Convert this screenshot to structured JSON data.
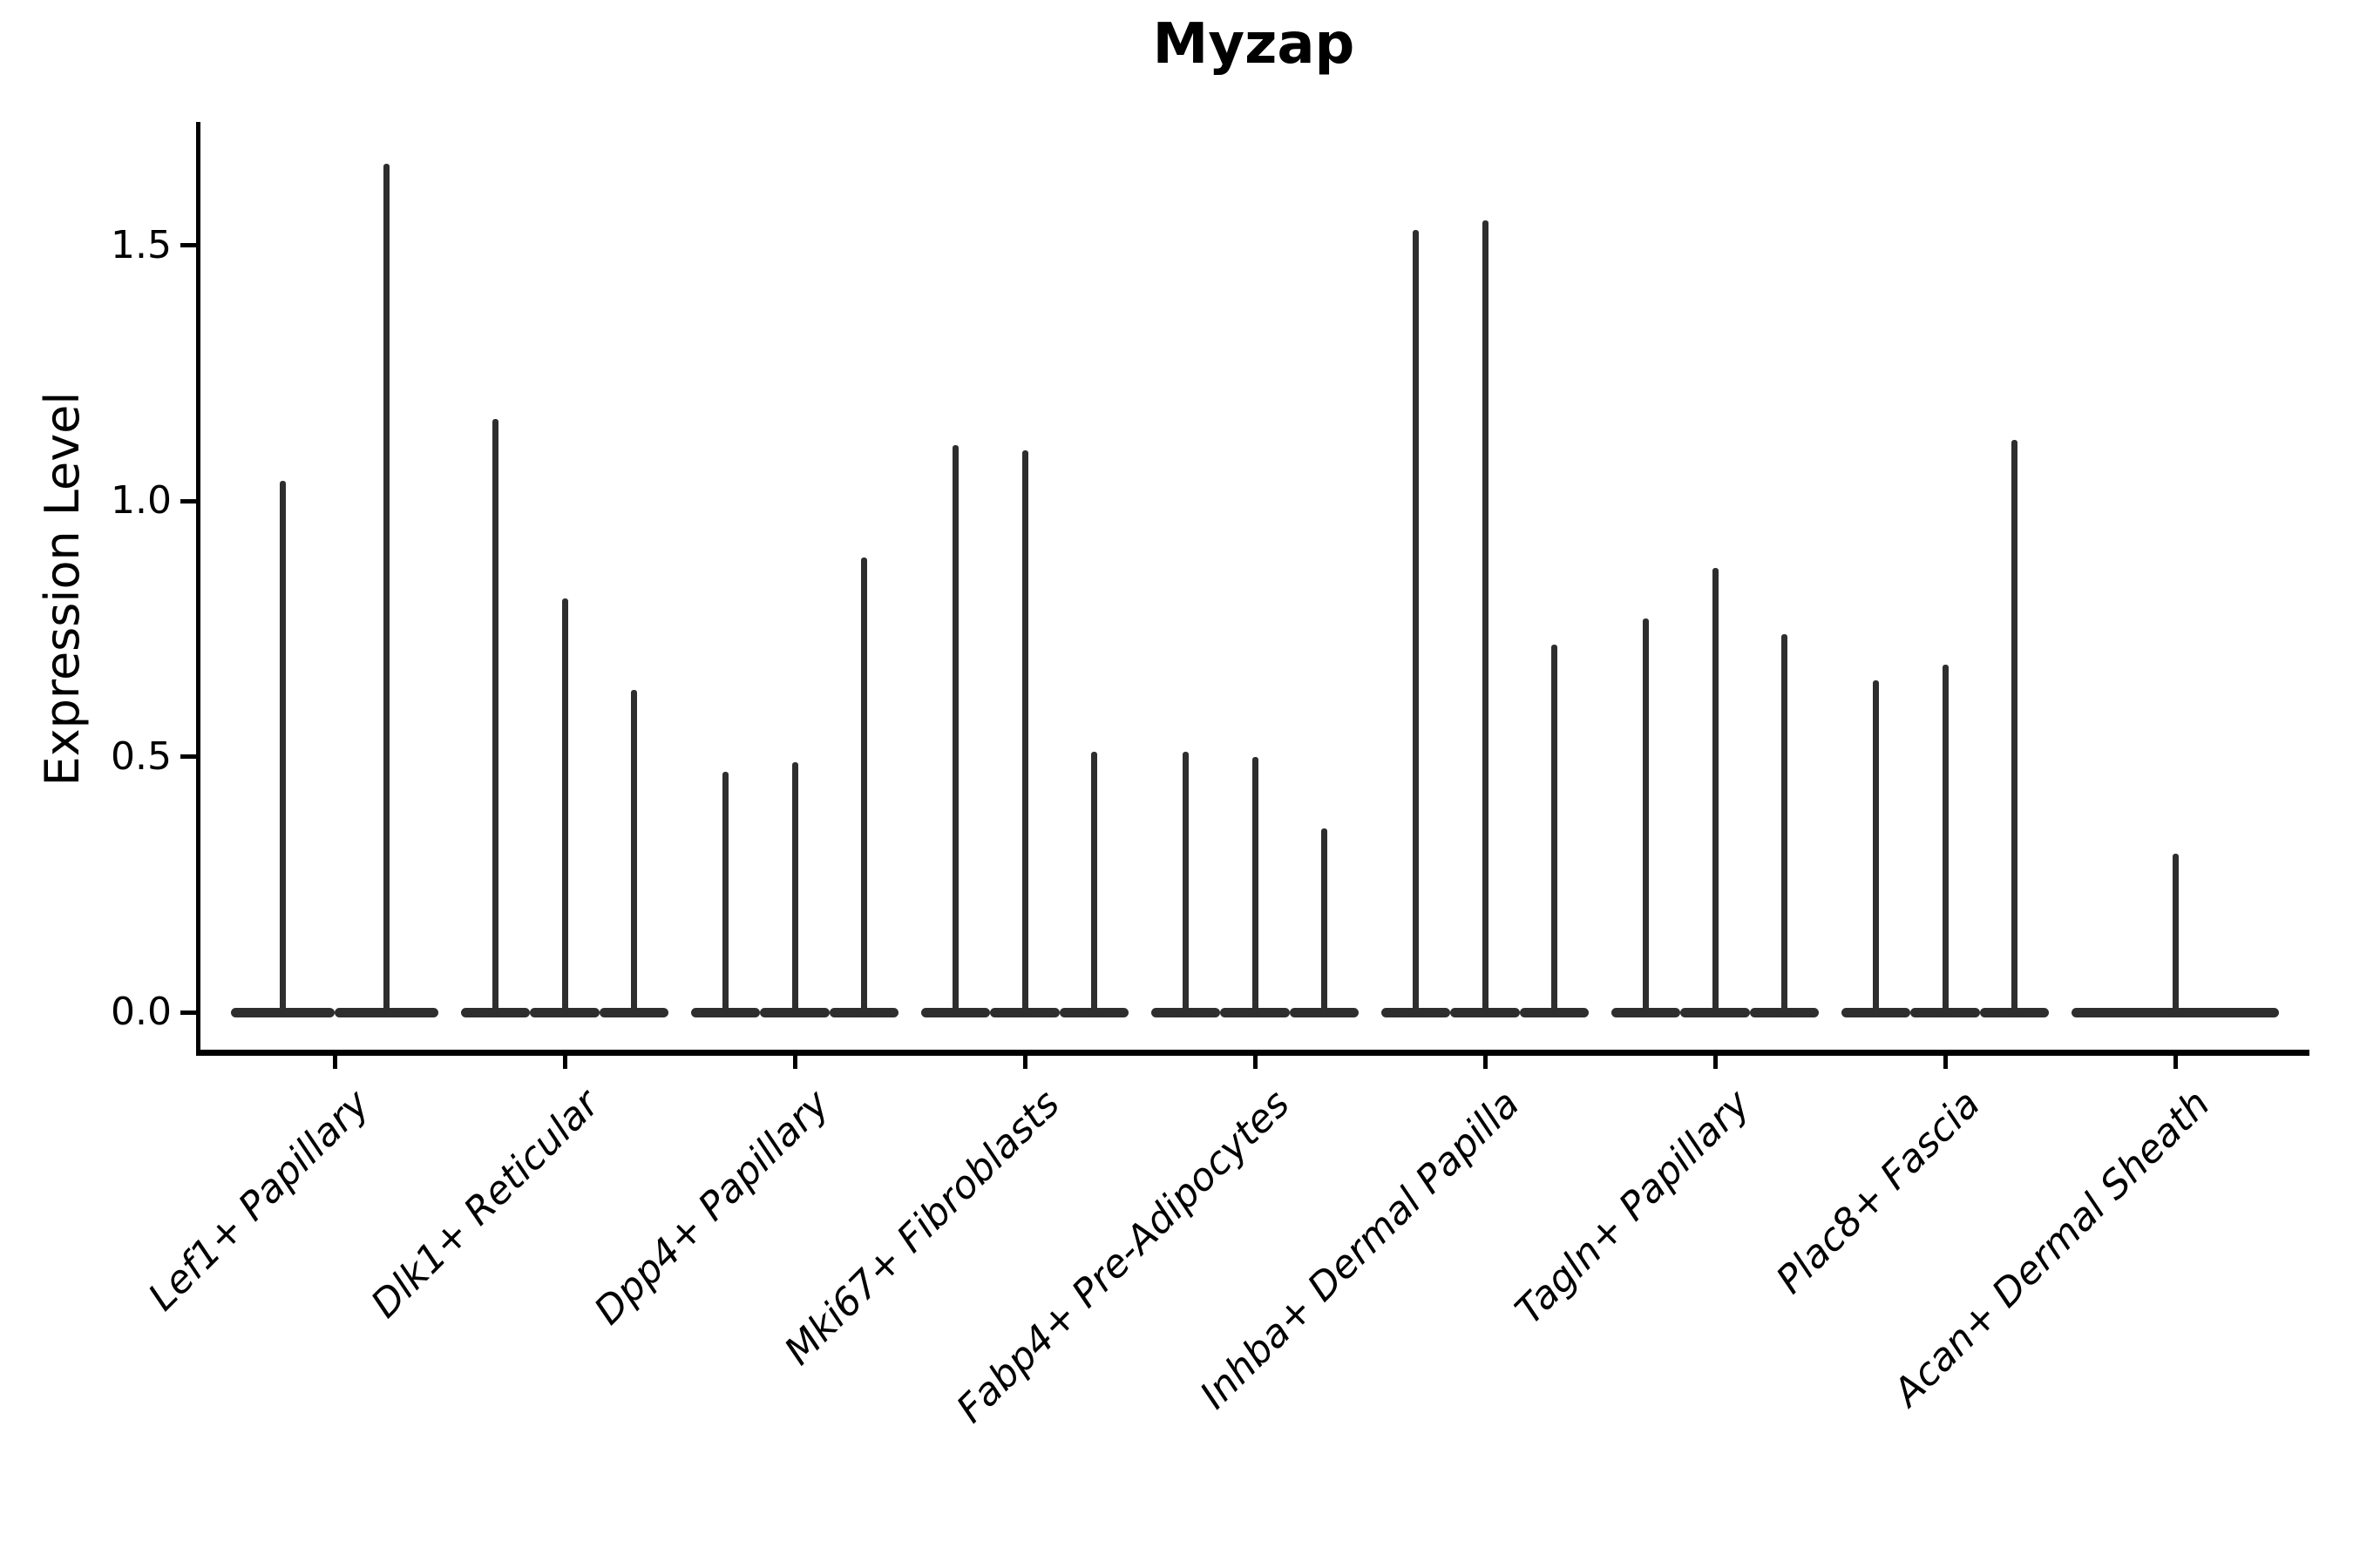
{
  "chart_data": {
    "type": "violin",
    "title": "Myzap",
    "ylabel": "Expression Level",
    "xlabel": "",
    "grid": false,
    "legend": "none",
    "ylim": [
      -0.08,
      1.742
    ],
    "yticks": [
      0.0,
      0.5,
      1.0,
      1.5
    ],
    "ytick_labels": [
      "0.0",
      "0.5",
      "1.0",
      "1.5"
    ],
    "categories": [
      "Lef1+ Papillary",
      "Dlk1+ Reticular",
      "Dpp4+ Papillary",
      "Mki67+ Fibroblasts",
      "Fabp4+ Pre-Adipocytes",
      "Inhba+ Dermal Papilla",
      "Tagln+ Papillary",
      "Plac8+ Fascia",
      "Acan+ Dermal Sheath"
    ],
    "groups": [
      {
        "label": "Lef1+ Papillary",
        "violin_maxes": [
          1.04,
          1.66
        ]
      },
      {
        "label": "Dlk1+ Reticular",
        "violin_maxes": [
          1.16,
          0.81,
          0.63
        ]
      },
      {
        "label": "Dpp4+ Papillary",
        "violin_maxes": [
          0.47,
          0.49,
          0.89
        ]
      },
      {
        "label": "Mki67+ Fibroblasts",
        "violin_maxes": [
          1.11,
          1.1,
          0.51
        ]
      },
      {
        "label": "Fabp4+ Pre-Adipocytes",
        "violin_maxes": [
          0.51,
          0.5,
          0.36
        ]
      },
      {
        "label": "Inhba+ Dermal Papilla",
        "violin_maxes": [
          1.53,
          1.55,
          0.72
        ]
      },
      {
        "label": "Tagln+ Papillary",
        "violin_maxes": [
          0.77,
          0.87,
          0.74
        ]
      },
      {
        "label": "Plac8+ Fascia",
        "violin_maxes": [
          0.65,
          0.68,
          1.12
        ]
      },
      {
        "label": "Acan+ Dermal Sheath",
        "violin_maxes": [
          0.31
        ]
      }
    ],
    "colors": {
      "violin": "#2e2e2e",
      "axis": "#000000",
      "text": "#000000",
      "background": "#ffffff"
    }
  }
}
